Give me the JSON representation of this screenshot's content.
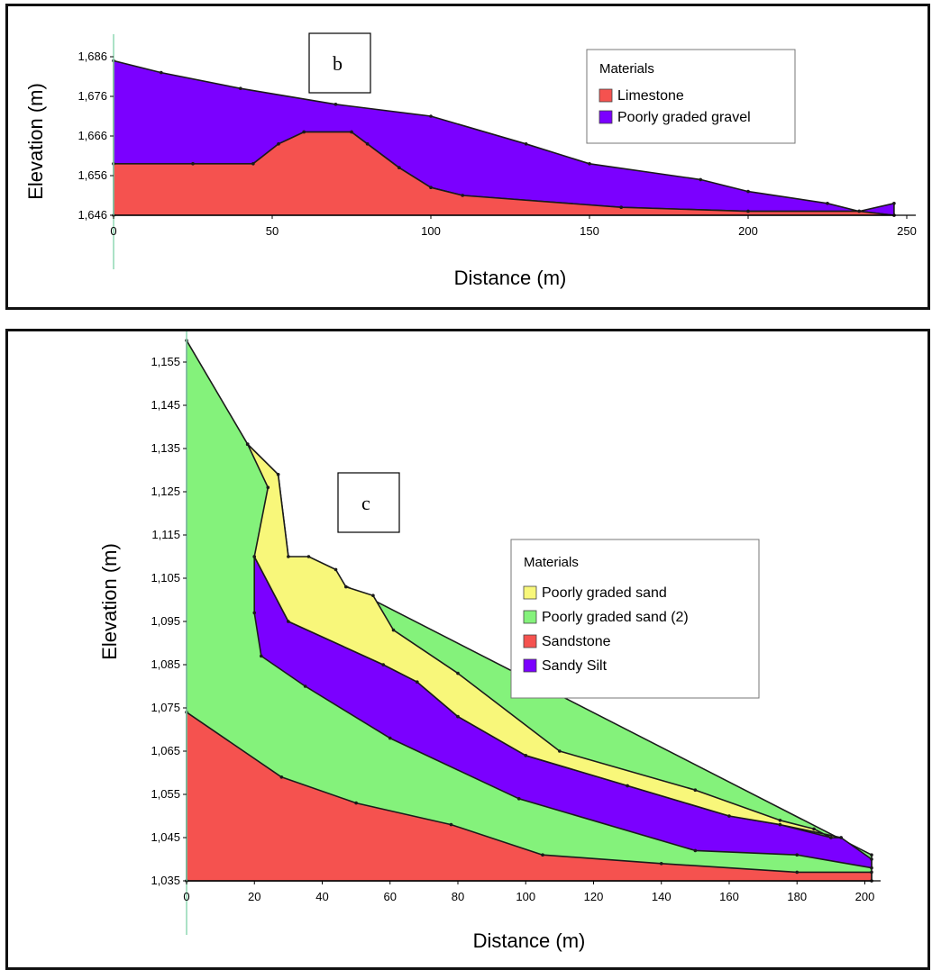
{
  "chart_data": [
    {
      "type": "area",
      "panel_label": "b",
      "xlabel": "Distance (m)",
      "ylabel": "Elevation (m)",
      "xlim": [
        0,
        250
      ],
      "ylim": [
        1646,
        1686
      ],
      "x_ticks": [
        0,
        50,
        100,
        150,
        200,
        250
      ],
      "y_ticks": [
        1646,
        1656,
        1666,
        1676,
        1686
      ],
      "x_tick_labels": [
        "0",
        "50",
        "100",
        "150",
        "200",
        "250"
      ],
      "y_tick_labels": [
        "1,646",
        "1,656",
        "1,666",
        "1,676",
        "1,686"
      ],
      "legend": {
        "title": "Materials",
        "position": "top-right"
      },
      "series": [
        {
          "name": "Poorly graded gravel",
          "color": "#7b00ff",
          "x": [
            0,
            15,
            40,
            70,
            100,
            130,
            150,
            185,
            200,
            225,
            235,
            246,
            246,
            235,
            200,
            160,
            110,
            100,
            90,
            80,
            75,
            60,
            52,
            44,
            25,
            0
          ],
          "y": [
            1685,
            1682,
            1678,
            1674,
            1671,
            1664,
            1659,
            1655,
            1652,
            1649,
            1647,
            1649,
            1646,
            1647,
            1647,
            1648,
            1651,
            1653,
            1658,
            1664,
            1667,
            1667,
            1664,
            1659,
            1659,
            1659
          ]
        },
        {
          "name": "Limestone",
          "color": "#f5524f",
          "x": [
            0,
            25,
            44,
            52,
            60,
            75,
            80,
            90,
            100,
            110,
            160,
            200,
            235,
            246,
            246,
            0
          ],
          "y": [
            1659,
            1659,
            1659,
            1664,
            1667,
            1667,
            1664,
            1658,
            1653,
            1651,
            1648,
            1647,
            1647,
            1646,
            1646,
            1646
          ]
        }
      ]
    },
    {
      "type": "area",
      "panel_label": "c",
      "xlabel": "Distance (m)",
      "ylabel": "Elevation (m)",
      "xlim": [
        0,
        202
      ],
      "ylim": [
        1035,
        1160
      ],
      "x_ticks": [
        0,
        20,
        40,
        60,
        80,
        100,
        120,
        140,
        160,
        180,
        200
      ],
      "y_ticks": [
        1035,
        1045,
        1055,
        1065,
        1075,
        1085,
        1095,
        1105,
        1115,
        1125,
        1135,
        1145,
        1155
      ],
      "x_tick_labels": [
        "0",
        "20",
        "40",
        "60",
        "80",
        "100",
        "120",
        "140",
        "160",
        "180",
        "200"
      ],
      "y_tick_labels": [
        "1,035",
        "1,045",
        "1,055",
        "1,065",
        "1,075",
        "1,085",
        "1,095",
        "1,105",
        "1,115",
        "1,125",
        "1,135",
        "1,145",
        "1,155"
      ],
      "legend": {
        "title": "Materials",
        "position": "right"
      },
      "series": [
        {
          "name": "Poorly graded sand (2)",
          "color": "#84f27b",
          "x": [
            0,
            18,
            27,
            30,
            202,
            202,
            0
          ],
          "y": [
            1160,
            1136,
            1129,
            1110,
            1041,
            1035,
            1035
          ]
        },
        {
          "name": "Sandstone",
          "color": "#f5524f",
          "x": [
            0,
            28,
            50,
            78,
            105,
            140,
            180,
            202,
            202,
            0
          ],
          "y": [
            1074,
            1059,
            1053,
            1048,
            1041,
            1039,
            1037,
            1037,
            1035,
            1035
          ]
        },
        {
          "name": "Sandy Silt",
          "color": "#7b00ff",
          "x": [
            20,
            30,
            58,
            68,
            80,
            100,
            130,
            160,
            175,
            190,
            193,
            202,
            202,
            180,
            150,
            98,
            60,
            35,
            22,
            20,
            20
          ],
          "y": [
            1110,
            1095,
            1085,
            1081,
            1073,
            1064,
            1057,
            1050,
            1048,
            1045,
            1045,
            1040,
            1038,
            1041,
            1042,
            1054,
            1068,
            1080,
            1087,
            1097,
            1110
          ]
        },
        {
          "name": "Poorly graded sand",
          "color": "#f8f77a",
          "x": [
            18,
            27,
            30,
            36,
            44,
            47,
            55,
            61,
            80,
            110,
            150,
            175,
            185,
            190,
            193,
            175,
            160,
            130,
            100,
            80,
            68,
            58,
            30,
            20,
            24,
            18
          ],
          "y": [
            1136,
            1129,
            1110,
            1110,
            1107,
            1103,
            1101,
            1093,
            1083,
            1065,
            1056,
            1049,
            1047,
            1045,
            1045,
            1048,
            1050,
            1057,
            1064,
            1073,
            1081,
            1085,
            1095,
            1110,
            1126,
            1136
          ]
        }
      ]
    }
  ]
}
